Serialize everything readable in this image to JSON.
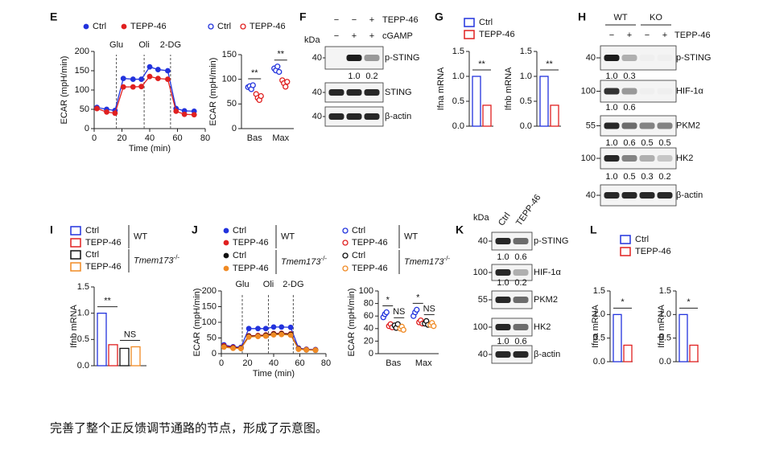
{
  "chart_data": [
    {
      "type": "line",
      "panel": "E",
      "y_label": "ECAR (mpH/min)",
      "x_label": "Time (min)",
      "x": [
        2,
        9,
        15,
        21,
        28,
        34,
        40,
        46,
        53,
        59,
        65,
        72
      ],
      "xlim": [
        0,
        80
      ],
      "xticks": [
        0,
        20,
        40,
        60,
        80
      ],
      "ylim": [
        0,
        200
      ],
      "yticks": [
        0,
        50,
        100,
        150,
        200
      ],
      "annotations": [
        {
          "x": 16,
          "label": "Glu"
        },
        {
          "x": 36,
          "label": "Oli"
        },
        {
          "x": 55,
          "label": "2-DG"
        }
      ],
      "series": [
        {
          "name": "Ctrl",
          "color": "#2233dd",
          "marker": "filled",
          "values": [
            55,
            50,
            47,
            130,
            128,
            128,
            160,
            153,
            150,
            52,
            46,
            45
          ]
        },
        {
          "name": "TEPP-46",
          "color": "#e02020",
          "marker": "filled",
          "values": [
            52,
            43,
            40,
            108,
            108,
            109,
            135,
            130,
            128,
            45,
            37,
            36
          ]
        }
      ]
    },
    {
      "type": "dot",
      "y_label": "ECAR (mpH/min)",
      "categories": [
        "Bas",
        "Max"
      ],
      "ylim": [
        0,
        150
      ],
      "yticks": [
        0,
        50,
        100,
        150
      ],
      "significance": [
        [
          "**"
        ],
        [
          "**"
        ]
      ],
      "series": [
        {
          "name": "Ctrl",
          "color": "#2233dd",
          "marker": "open",
          "values": [
            [
              84,
              86,
              80,
              88
            ],
            [
              122,
              118,
              126,
              115
            ]
          ]
        },
        {
          "name": "TEPP-46",
          "color": "#e02020",
          "marker": "open",
          "values": [
            [
              70,
              62,
              58,
              66
            ],
            [
              98,
              92,
              85,
              95
            ]
          ]
        }
      ]
    },
    {
      "type": "bar",
      "panel": "G",
      "ylim": [
        0,
        1.5
      ],
      "yticks": [
        {
          "value": 0,
          "label": "0.0"
        },
        0.5,
        {
          "value": 1,
          "label": "1.0"
        },
        1.5
      ],
      "series": [
        {
          "name": "Ctrl",
          "color": "#2233dd"
        },
        {
          "name": "TEPP-46",
          "color": "#e02020"
        }
      ],
      "panels": [
        {
          "y_label": "Ifna mRNA",
          "values": [
            1.0,
            0.42
          ],
          "significance": [
            "**"
          ]
        },
        {
          "y_label": "Ifnb mRNA",
          "values": [
            1.0,
            0.42
          ],
          "significance": [
            "**"
          ]
        }
      ]
    },
    {
      "type": "bar",
      "panel": "I",
      "ylim": [
        0,
        1.5
      ],
      "yticks": [
        {
          "value": 0,
          "label": "0.0"
        },
        0.5,
        {
          "value": 1,
          "label": "1.0"
        },
        1.5
      ],
      "groups": [
        {
          "name": "WT"
        },
        {
          "name": "Tmem173",
          "sup": "-/-",
          "italic": true
        }
      ],
      "series": [
        {
          "name": "Ctrl",
          "color": "#2233dd"
        },
        {
          "name": "TEPP-46",
          "color": "#e02020"
        },
        {
          "name": "Ctrl",
          "color": "#111111"
        },
        {
          "name": "TEPP-46",
          "color": "#f08a24"
        }
      ],
      "panels": [
        {
          "y_label": "Ifnb mRNA",
          "values": [
            1.0,
            0.4,
            0.33,
            0.36
          ],
          "significance": [
            "**",
            "NS"
          ]
        }
      ]
    },
    {
      "type": "line",
      "panel": "J",
      "y_label": "ECAR (mpH/min)",
      "x_label": "Time (min)",
      "x": [
        2,
        9,
        15,
        21,
        28,
        34,
        40,
        46,
        53,
        59,
        65,
        72
      ],
      "xlim": [
        0,
        80
      ],
      "xticks": [
        0,
        20,
        40,
        60,
        80
      ],
      "ylim": [
        0,
        200
      ],
      "yticks": [
        0,
        50,
        100,
        150,
        200
      ],
      "annotations": [
        {
          "x": 16,
          "label": "Glu"
        },
        {
          "x": 36,
          "label": "Oli"
        },
        {
          "x": 55,
          "label": "2-DG"
        }
      ],
      "groups": [
        {
          "name": "WT"
        },
        {
          "name": "Tmem173",
          "sup": "-/-",
          "italic": true
        }
      ],
      "series": [
        {
          "name": "Ctrl",
          "color": "#2233dd",
          "marker": "filled",
          "values": [
            28,
            22,
            20,
            80,
            80,
            80,
            85,
            85,
            84,
            18,
            14,
            13
          ]
        },
        {
          "name": "TEPP-46",
          "color": "#e02020",
          "marker": "filled",
          "values": [
            25,
            20,
            18,
            57,
            58,
            60,
            64,
            65,
            63,
            16,
            13,
            12
          ]
        },
        {
          "name": "Ctrl",
          "color": "#111111",
          "marker": "filled",
          "values": [
            22,
            18,
            17,
            55,
            56,
            58,
            62,
            63,
            61,
            15,
            12,
            11
          ]
        },
        {
          "name": "TEPP-46",
          "color": "#f08a24",
          "marker": "filled",
          "values": [
            21,
            17,
            16,
            53,
            55,
            56,
            60,
            61,
            59,
            14,
            12,
            11
          ]
        }
      ]
    },
    {
      "type": "dot",
      "y_label": "ECAR (mpH/min)",
      "categories": [
        "Bas",
        "Max"
      ],
      "ylim": [
        0,
        100
      ],
      "yticks": [
        0,
        20,
        40,
        60,
        80,
        100
      ],
      "significance": [
        [
          "*",
          "NS"
        ],
        [
          "*",
          "NS"
        ]
      ],
      "groups": [
        {
          "name": "WT"
        },
        {
          "name": "Tmem173",
          "sup": "-/-",
          "italic": true
        }
      ],
      "series": [
        {
          "name": "Ctrl",
          "color": "#2233dd",
          "marker": "open",
          "values": [
            [
              58,
              63,
              66
            ],
            [
              60,
              66,
              70
            ]
          ]
        },
        {
          "name": "TEPP-46",
          "color": "#e02020",
          "marker": "open",
          "values": [
            [
              44,
              47,
              42
            ],
            [
              50,
              53,
              48
            ]
          ]
        },
        {
          "name": "Ctrl",
          "color": "#111111",
          "marker": "open",
          "values": [
            [
              45,
              41,
              47
            ],
            [
              48,
              52,
              46
            ]
          ]
        },
        {
          "name": "TEPP-46",
          "color": "#f08a24",
          "marker": "open",
          "values": [
            [
              40,
              43,
              38
            ],
            [
              46,
              49,
              44
            ]
          ]
        }
      ]
    },
    {
      "type": "bar",
      "panel": "L",
      "ylim": [
        0,
        1.5
      ],
      "yticks": [
        {
          "value": 0,
          "label": "0.0"
        },
        0.5,
        {
          "value": 1,
          "label": "1.0"
        },
        1.5
      ],
      "series": [
        {
          "name": "Ctrl",
          "color": "#2233dd"
        },
        {
          "name": "TEPP-46",
          "color": "#e02020"
        }
      ],
      "panels": [
        {
          "y_label": "Ifna mRNA",
          "values": [
            1.0,
            0.35
          ],
          "significance": [
            "*"
          ]
        },
        {
          "y_label": "Ifnb mRNA",
          "values": [
            1.0,
            0.35
          ],
          "significance": [
            "*"
          ]
        }
      ]
    }
  ],
  "blots": [
    {
      "panel": "F",
      "kda_label": "kDa",
      "headers": [
        {
          "label": "TEPP-46",
          "marks": [
            "−",
            "−",
            "+"
          ]
        },
        {
          "label": "cGAMP",
          "marks": [
            "−",
            "+",
            "+"
          ]
        }
      ],
      "bands": [
        {
          "kda": 40,
          "name": "p-STING",
          "quant": [
            "1.0",
            "0.2"
          ]
        },
        {
          "kda": 40,
          "name": "STING"
        },
        {
          "kda": 40,
          "name": "β-actin"
        }
      ]
    },
    {
      "panel": "H",
      "groups": [
        "WT",
        "KO"
      ],
      "headers": [
        {
          "label": "TEPP-46",
          "marks": [
            "−",
            "+",
            "−",
            "+"
          ]
        }
      ],
      "bands": [
        {
          "kda": 40,
          "name": "p-STING",
          "quant": [
            "1.0",
            "0.3"
          ]
        },
        {
          "kda": 100,
          "name": "HIF-1α",
          "quant": [
            "1.0",
            "0.6"
          ]
        },
        {
          "kda": 55,
          "name": "PKM2",
          "quant": [
            "1.0",
            "0.6",
            "0.5",
            "0.5"
          ]
        },
        {
          "kda": 100,
          "name": "HK2",
          "quant": [
            "1.0",
            "0.5",
            "0.3",
            "0.2"
          ]
        },
        {
          "kda": 40,
          "name": "β-actin"
        }
      ]
    },
    {
      "panel": "K",
      "kda_label": "kDa",
      "columns": [
        "Ctrl",
        "TEPP-46"
      ],
      "bands": [
        {
          "kda": 40,
          "name": "p-STING",
          "quant": [
            "1.0",
            "0.6"
          ]
        },
        {
          "kda": 100,
          "name": "HIF-1α",
          "quant": [
            "1.0",
            "0.2"
          ]
        },
        {
          "kda": 55,
          "name": "PKM2"
        },
        {
          "kda": 100,
          "name": "HK2",
          "quant": [
            "1.0",
            "0.6"
          ]
        },
        {
          "kda": 40,
          "name": "β-actin"
        }
      ]
    }
  ],
  "caption": "完善了整个正反馈调节通路的节点，形成了示意图。"
}
